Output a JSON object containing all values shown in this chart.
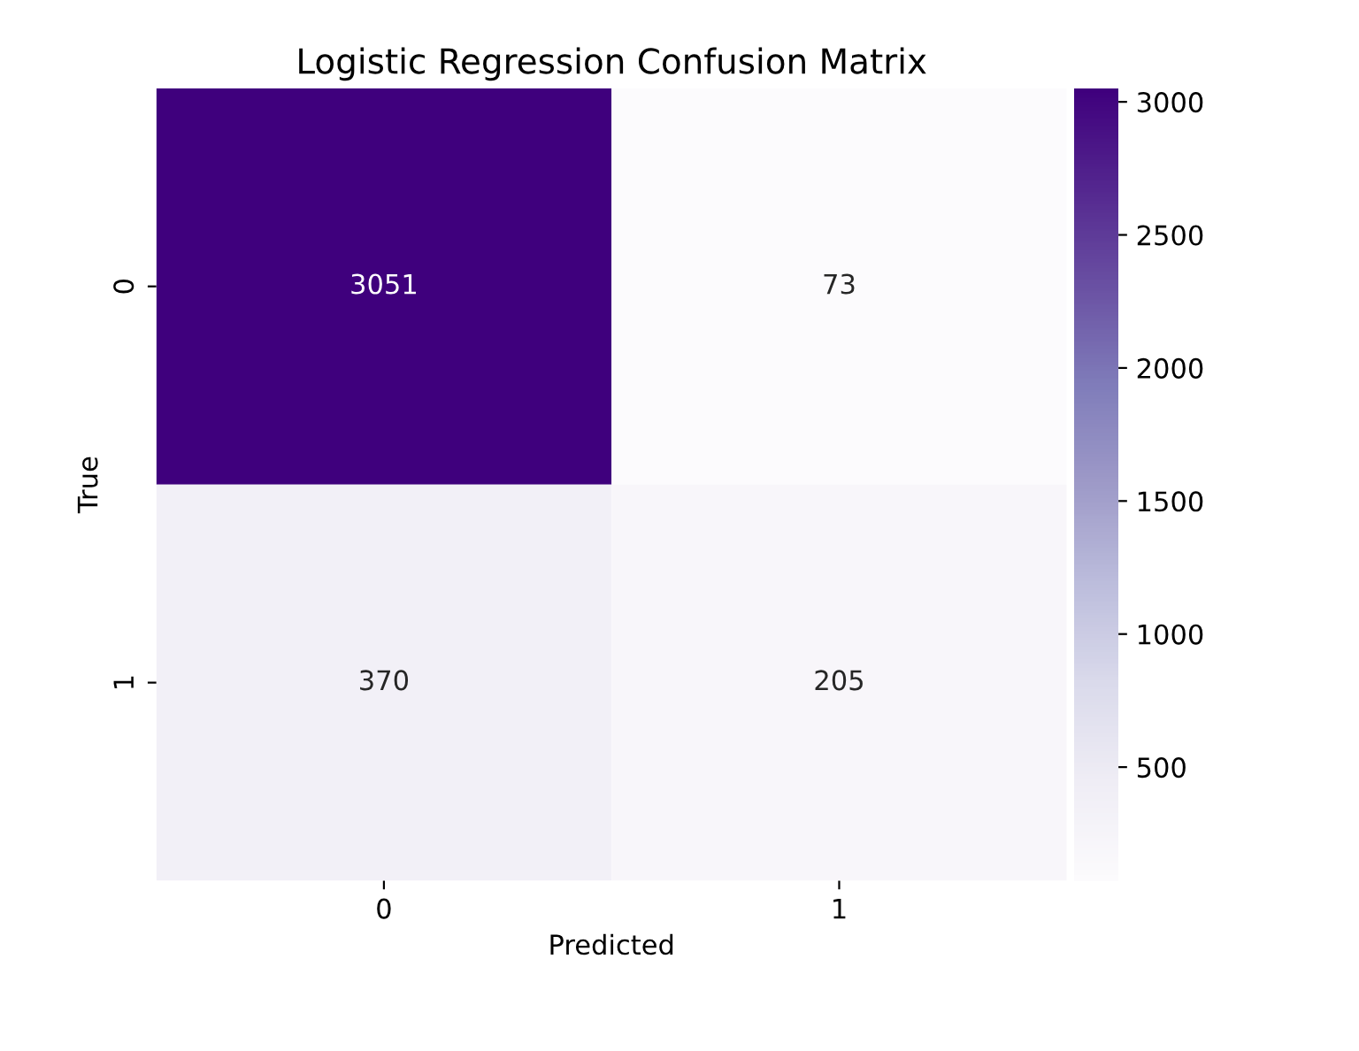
{
  "chart_data": {
    "type": "heatmap",
    "title": "Logistic Regression Confusion Matrix",
    "xlabel": "Predicted",
    "ylabel": "True",
    "categories": [
      "0",
      "1"
    ],
    "y_categories": [
      "0",
      "1"
    ],
    "cells": [
      [
        3051,
        73
      ],
      [
        370,
        205
      ]
    ],
    "data_labels": true,
    "clim": [
      73,
      3051
    ],
    "cticks": [
      500,
      1000,
      1500,
      2000,
      2500,
      3000
    ]
  }
}
